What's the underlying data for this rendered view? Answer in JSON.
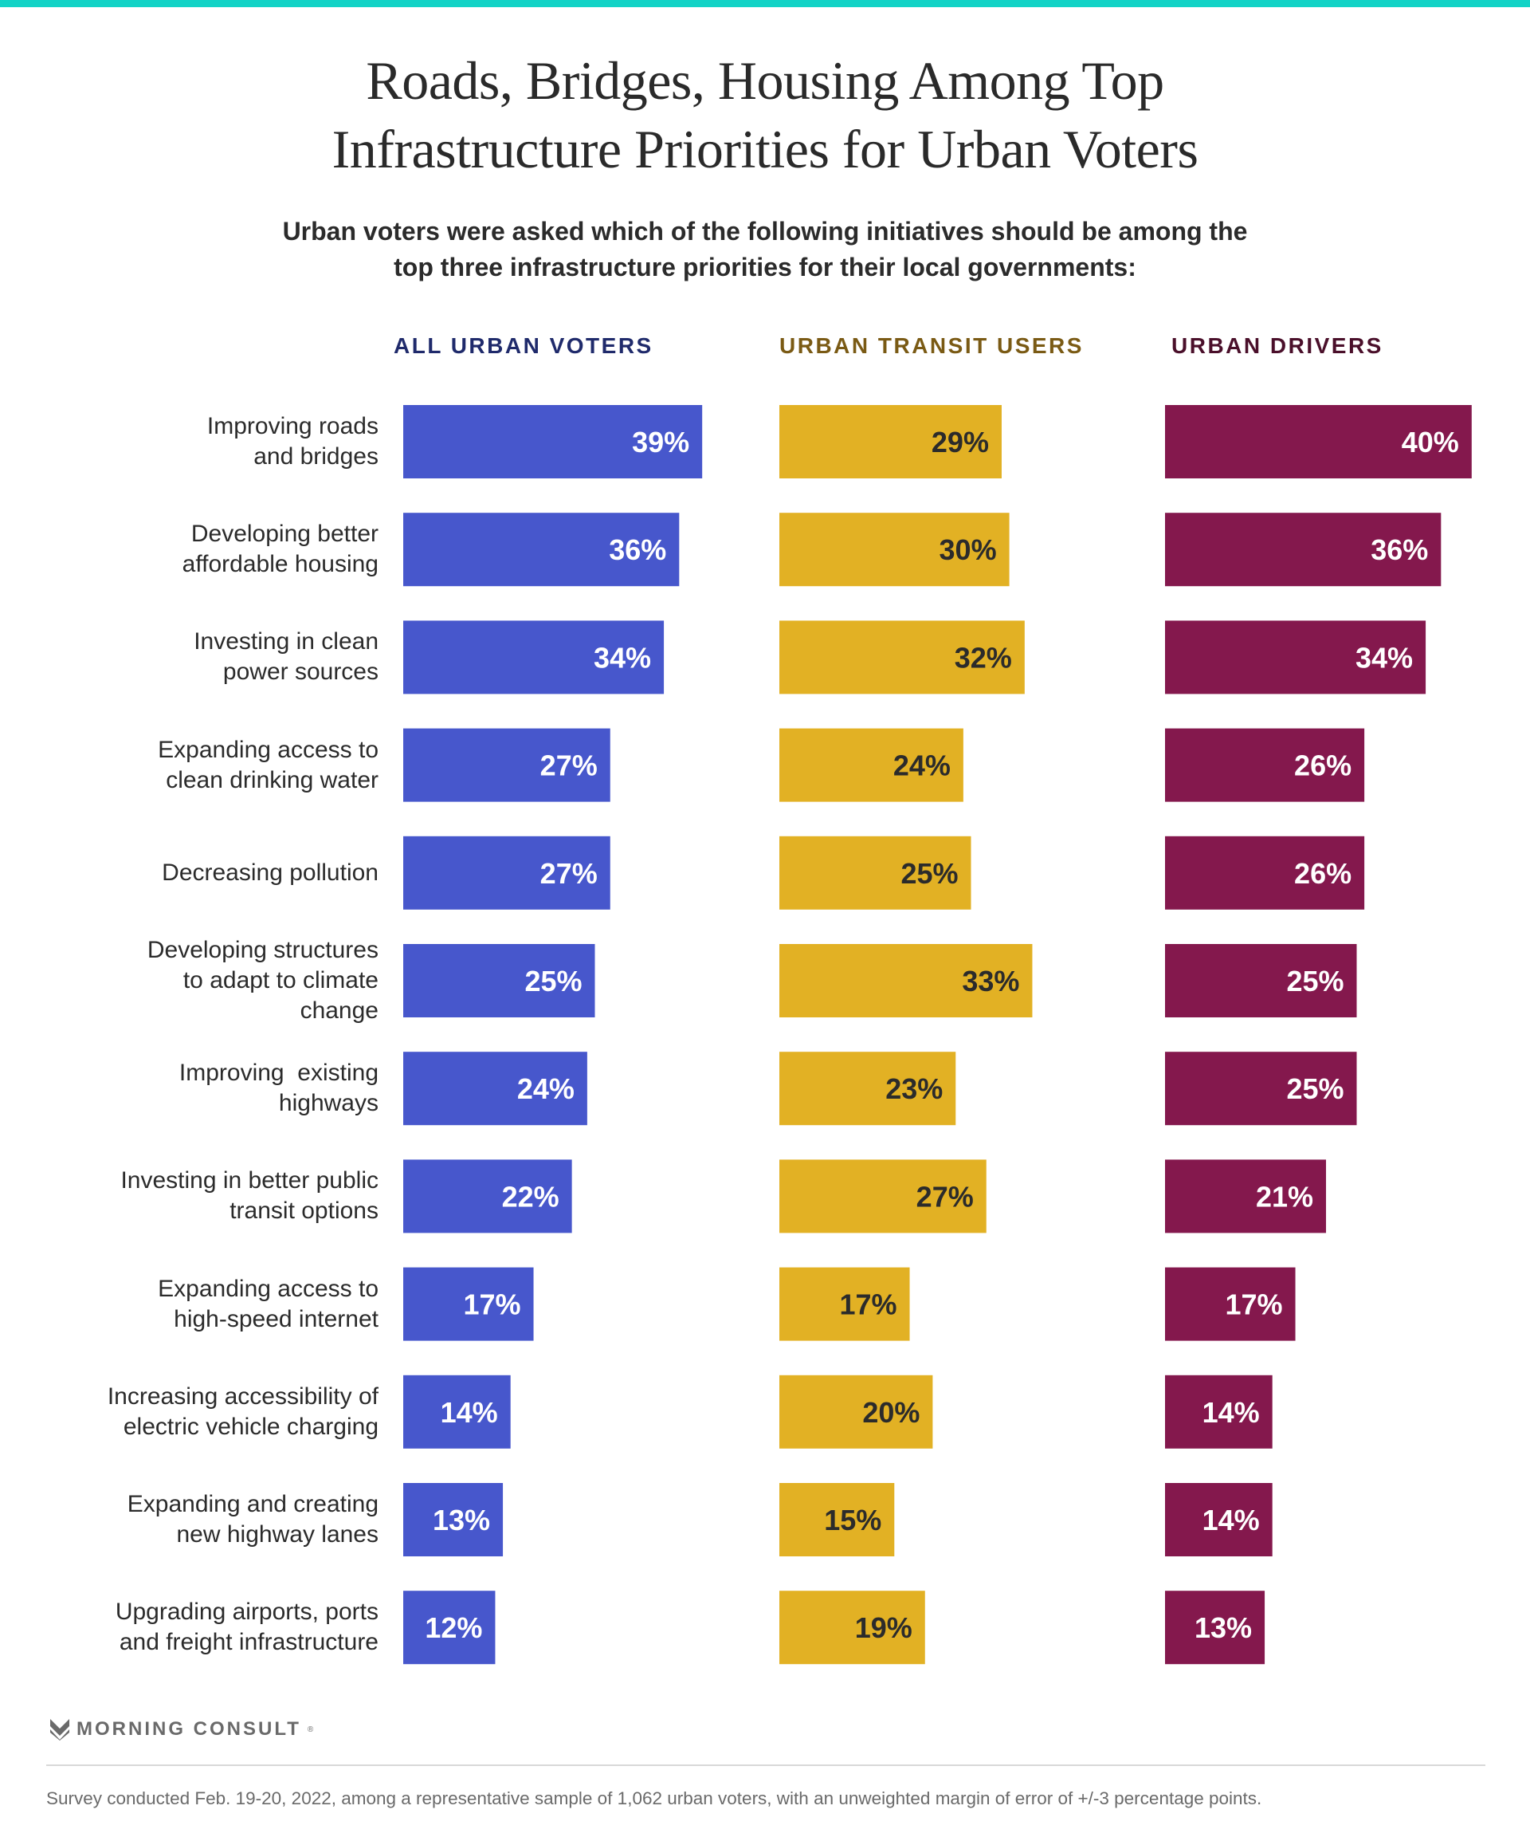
{
  "title_lines": [
    "Roads, Bridges, Housing Among Top",
    "Infrastructure Priorities for Urban Voters"
  ],
  "subtitle_lines": [
    "Urban voters were asked which of the following initiatives should be among the",
    "top three infrastructure priorities for their local governments:"
  ],
  "colors": {
    "accent_top": "#12d3c6"
  },
  "chart_data": {
    "type": "bar",
    "orientation": "horizontal",
    "title": "Roads, Bridges, Housing Among Top Infrastructure Priorities for Urban Voters",
    "subtitle": "Urban voters were asked which of the following initiatives should be among the top three infrastructure priorities for their local governments:",
    "xlabel": "",
    "ylabel": "",
    "unit": "%",
    "xlim": [
      0,
      40
    ],
    "grid": false,
    "categories": [
      [
        "Improving roads",
        "and bridges"
      ],
      [
        "Developing better",
        "affordable housing"
      ],
      [
        "Investing in clean",
        "power sources"
      ],
      [
        "Expanding access to",
        "clean drinking water"
      ],
      [
        "Decreasing pollution"
      ],
      [
        "Developing structures",
        "to adapt to climate",
        "change"
      ],
      [
        "Improving  existing",
        "highways"
      ],
      [
        "Investing in better public",
        "transit options"
      ],
      [
        "Expanding access to",
        "high-speed internet"
      ],
      [
        "Increasing accessibility of",
        "electric vehicle charging"
      ],
      [
        "Expanding and creating",
        "new highway lanes"
      ],
      [
        "Upgrading airports, ports",
        "and freight infrastructure"
      ]
    ],
    "series": [
      {
        "name": "ALL URBAN VOTERS",
        "header_color": "#1f2a6b",
        "bar_color": "#4757cc",
        "label_color": "#ffffff",
        "values": [
          39,
          36,
          34,
          27,
          27,
          25,
          24,
          22,
          17,
          14,
          13,
          12
        ]
      },
      {
        "name": "URBAN TRANSIT USERS",
        "header_color": "#7a5a14",
        "bar_color": "#e2b124",
        "label_color": "#2b2b2b",
        "values": [
          29,
          30,
          32,
          24,
          25,
          33,
          23,
          27,
          17,
          20,
          15,
          19
        ]
      },
      {
        "name": "URBAN DRIVERS",
        "header_color": "#4a0f2a",
        "bar_color": "#84184d",
        "label_color": "#ffffff",
        "values": [
          40,
          36,
          34,
          26,
          26,
          25,
          25,
          21,
          17,
          14,
          14,
          13
        ]
      }
    ]
  },
  "footer": {
    "logo_text": "MORNING CONSULT",
    "logo_mark": "®",
    "note": "Survey conducted Feb. 19-20, 2022, among a representative sample of 1,062 urban voters, with an unweighted margin of error of +/-3 percentage points."
  }
}
